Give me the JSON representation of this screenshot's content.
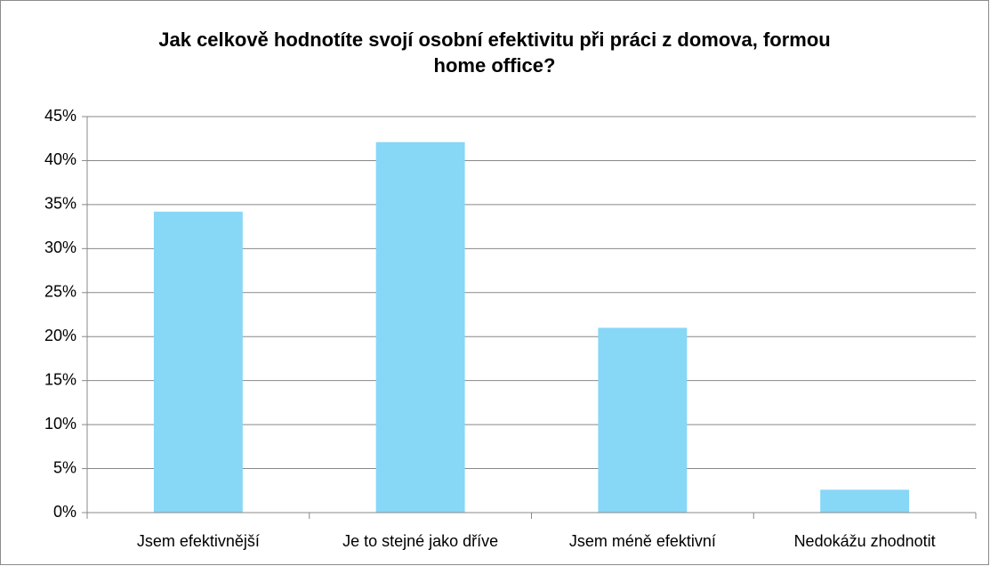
{
  "chart_data": {
    "type": "bar",
    "title": "Jak celkově hodnotíte svojí osobní efektivitu při práci z domova, formou home office?",
    "categories": [
      "Jsem efektivnější",
      "Je to stejné jako dříve",
      "Jsem méně efektivní",
      "Nedokážu zhodnotit"
    ],
    "values": [
      34.2,
      42.1,
      21,
      2.6
    ],
    "color": "#87d7f7",
    "ylim": [
      0,
      45
    ],
    "yticks": [
      {
        "value": 0,
        "label": "0%"
      },
      {
        "value": 5,
        "label": "5%"
      },
      {
        "value": 10,
        "label": "10%"
      },
      {
        "value": 15,
        "label": "15%"
      },
      {
        "value": 20,
        "label": "20%"
      },
      {
        "value": 25,
        "label": "25%"
      },
      {
        "value": 30,
        "label": "30%"
      },
      {
        "value": 35,
        "label": "35%"
      },
      {
        "value": 40,
        "label": "40%"
      },
      {
        "value": 45,
        "label": "45%"
      }
    ],
    "grid": true
  }
}
